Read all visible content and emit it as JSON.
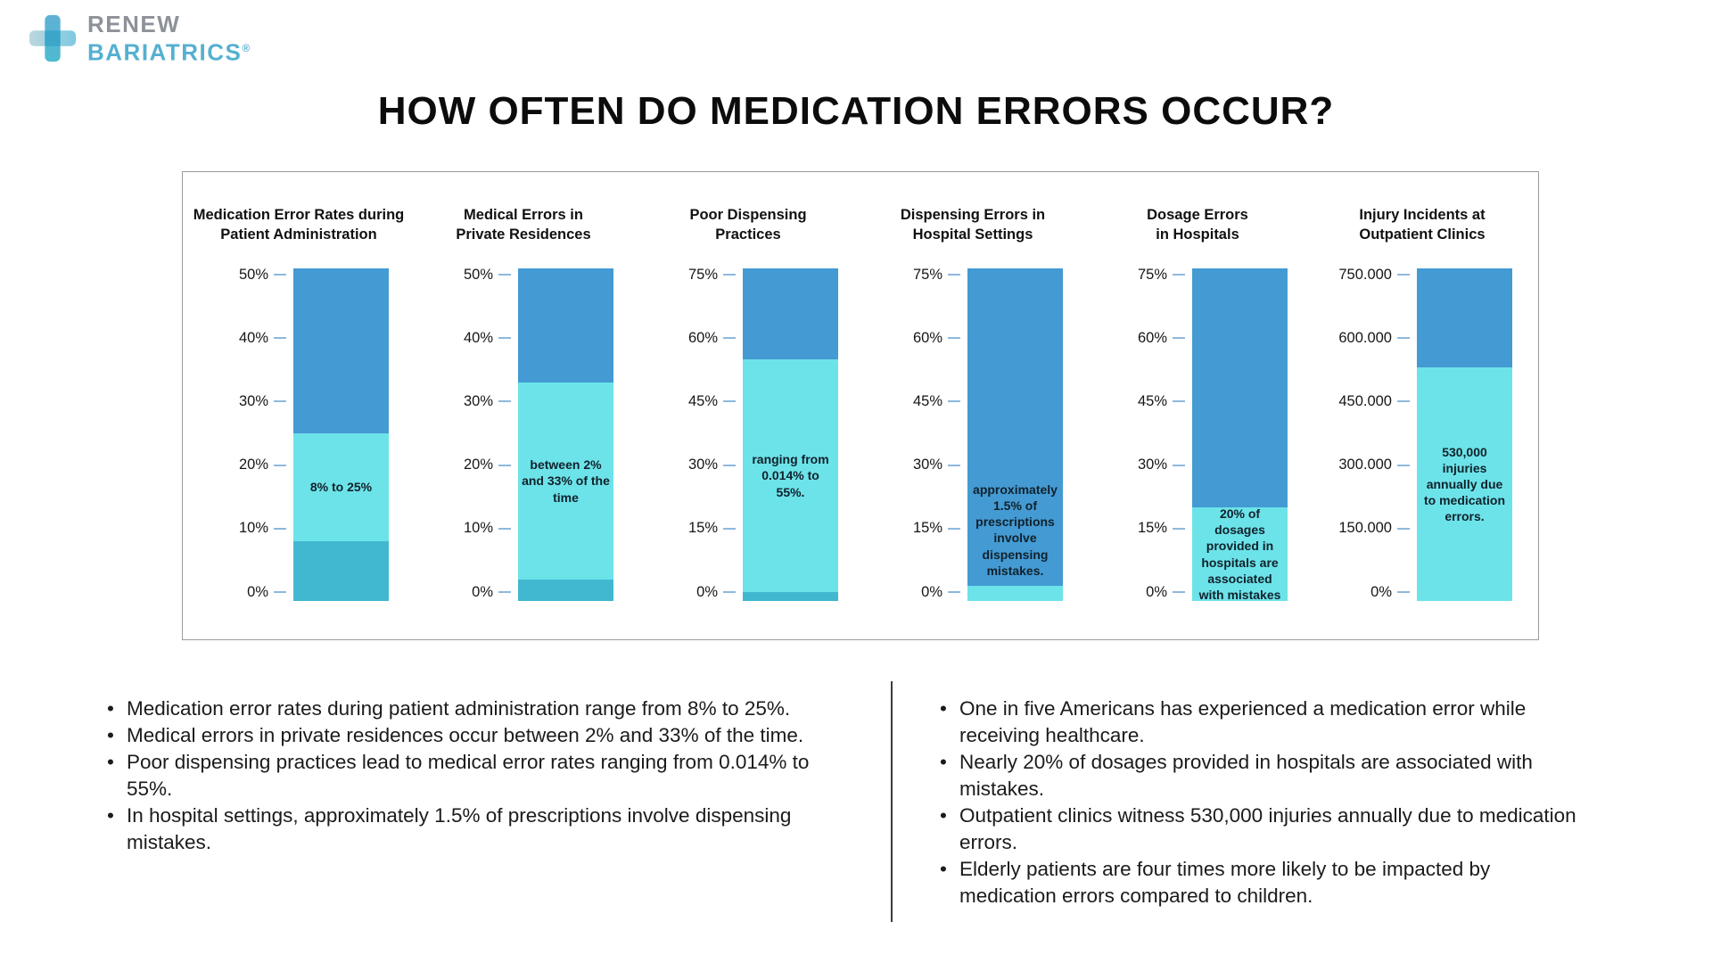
{
  "logo": {
    "line1": "RENEW",
    "line2": "BARIATRICS",
    "reg": "®"
  },
  "title": "HOW OFTEN DO MEDICATION ERRORS OCCUR?",
  "colors": {
    "bar_blue": "#449ad3",
    "bar_cyan": "#6ce3e9",
    "bar_teal": "#41b8d0",
    "tick": "#8fb8dc",
    "panel_border": "#9b9b9b",
    "logo_gray": "#8d9298",
    "logo_blue": "#55b0d0"
  },
  "chart_data": [
    {
      "type": "bar",
      "title_lines": [
        "Medication Error Rates during",
        "Patient Administration"
      ],
      "ylim": [
        0,
        50
      ],
      "yticks": [
        "50%",
        "40%",
        "30%",
        "20%",
        "10%",
        "0%"
      ],
      "range": [
        8,
        25
      ],
      "label": "8% to 25%",
      "label_placement": "inside"
    },
    {
      "type": "bar",
      "title_lines": [
        "Medical Errors in",
        "Private Residences"
      ],
      "ylim": [
        0,
        50
      ],
      "yticks": [
        "50%",
        "40%",
        "30%",
        "20%",
        "10%",
        "0%"
      ],
      "range": [
        2,
        33
      ],
      "label": "between 2% and 33% of the time",
      "label_placement": "inside"
    },
    {
      "type": "bar",
      "title_lines": [
        "Poor Dispensing",
        "Practices"
      ],
      "ylim": [
        0,
        75
      ],
      "yticks": [
        "75%",
        "60%",
        "45%",
        "30%",
        "15%",
        "0%"
      ],
      "range": [
        0.014,
        55
      ],
      "label": "ranging from 0.014% to 55%.",
      "label_placement": "inside"
    },
    {
      "type": "bar",
      "title_lines": [
        "Dispensing Errors in",
        "Hospital Settings"
      ],
      "ylim": [
        0,
        75
      ],
      "yticks": [
        "75%",
        "60%",
        "45%",
        "30%",
        "15%",
        "0%"
      ],
      "range": [
        0,
        1.5
      ],
      "label": "approximately 1.5% of prescriptions involve dispensing mistakes.",
      "label_placement": "above"
    },
    {
      "type": "bar",
      "title_lines": [
        "Dosage Errors",
        "in Hospitals"
      ],
      "ylim": [
        0,
        75
      ],
      "yticks": [
        "75%",
        "60%",
        "45%",
        "30%",
        "15%",
        "0%"
      ],
      "range": [
        0,
        20
      ],
      "label": "20% of dosages provided in hospitals are associated with mistakes",
      "label_placement": "inside"
    },
    {
      "type": "bar",
      "title_lines": [
        "Injury Incidents at",
        "Outpatient Clinics"
      ],
      "ylim": [
        0,
        750000
      ],
      "yticks": [
        "750.000",
        "600.000",
        "450.000",
        "300.000",
        "150.000",
        "0%"
      ],
      "range": [
        0,
        530000
      ],
      "label": "530,000 injuries annually due to medication errors.",
      "label_placement": "inside"
    }
  ],
  "bullets_left": [
    "Medication error rates during patient administration range from 8% to 25%.",
    "Medical errors in private residences occur between 2% and 33% of the time.",
    "Poor dispensing practices lead to medical error rates ranging from 0.014% to 55%.",
    "In hospital settings, approximately 1.5% of prescriptions involve dispensing mistakes."
  ],
  "bullets_right": [
    "One in five Americans has experienced a medication error while receiving healthcare.",
    "Nearly 20% of dosages provided in hospitals are associated with mistakes.",
    "Outpatient clinics witness 530,000 injuries annually due to medication errors.",
    "Elderly patients are four times more likely to be impacted by medication errors compared to children."
  ]
}
